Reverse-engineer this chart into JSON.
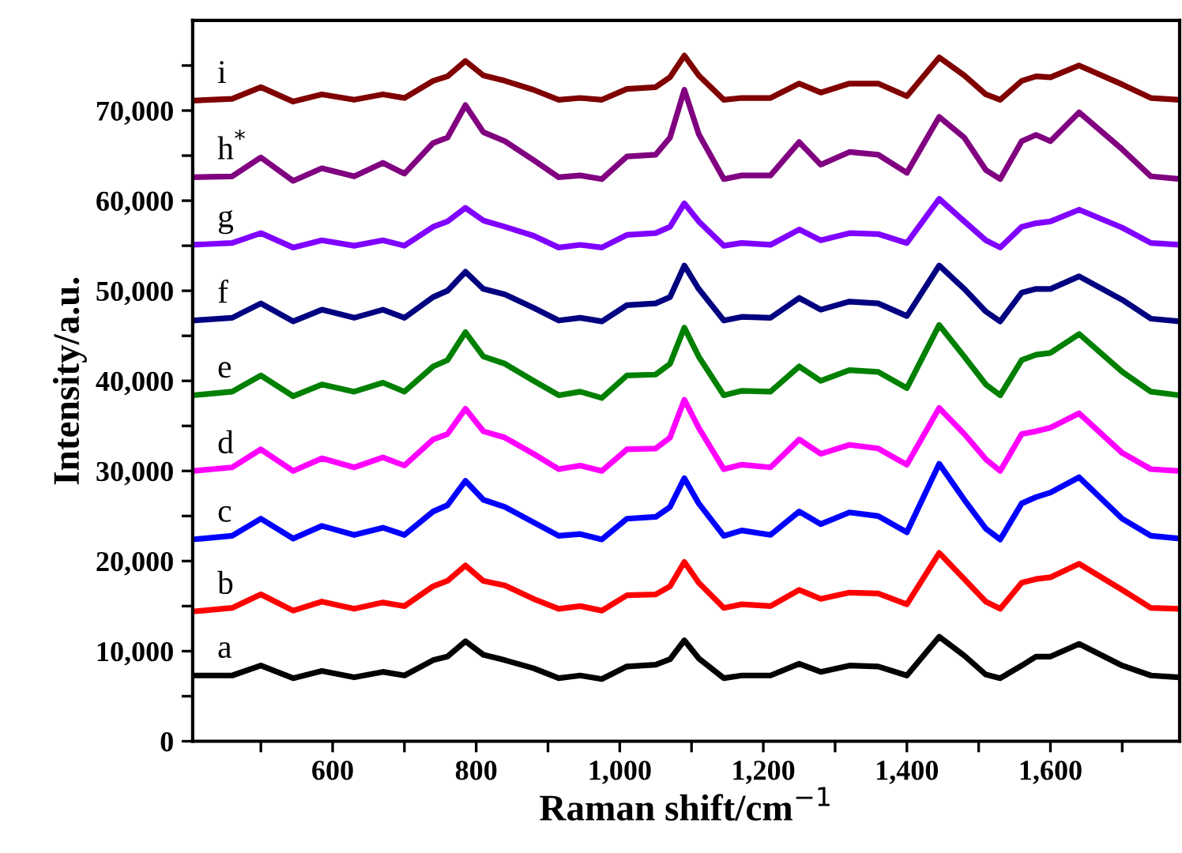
{
  "chart_data": {
    "type": "line",
    "xlabel": "Raman shift/cm$^{−1}$",
    "ylabel": "Intensity/a.u.",
    "x": [
      405,
      460,
      500,
      545,
      585,
      630,
      670,
      700,
      740,
      760,
      785,
      810,
      840,
      880,
      915,
      945,
      975,
      1010,
      1050,
      1070,
      1090,
      1110,
      1145,
      1170,
      1210,
      1250,
      1280,
      1320,
      1360,
      1400,
      1445,
      1480,
      1510,
      1530,
      1560,
      1580,
      1600,
      1640,
      1700,
      1740,
      1780
    ],
    "xlim": [
      405,
      1780
    ],
    "xticks": [
      {
        "value": 500,
        "label": null
      },
      {
        "value": 600,
        "label": "600"
      },
      {
        "value": 700,
        "label": null
      },
      {
        "value": 800,
        "label": "800"
      },
      {
        "value": 900,
        "label": null
      },
      {
        "value": 1000,
        "label": "1,000"
      },
      {
        "value": 1100,
        "label": null
      },
      {
        "value": 1200,
        "label": "1,200"
      },
      {
        "value": 1300,
        "label": null
      },
      {
        "value": 1400,
        "label": "1,400"
      },
      {
        "value": 1500,
        "label": null
      },
      {
        "value": 1600,
        "label": "1,600"
      },
      {
        "value": 1700,
        "label": null
      }
    ],
    "ylim": [
      0,
      80000
    ],
    "yticks": [
      0,
      {
        "value": 5000,
        "label": null
      },
      {
        "value": 10000,
        "label": "10,000"
      },
      {
        "value": 15000,
        "label": null
      },
      {
        "value": 20000,
        "label": "20,000"
      },
      {
        "value": 25000,
        "label": null
      },
      {
        "value": 30000,
        "label": "30,000"
      },
      {
        "value": 35000,
        "label": null
      },
      {
        "value": 40000,
        "label": "40,000"
      },
      {
        "value": 45000,
        "label": null
      },
      {
        "value": 50000,
        "label": "50,000"
      },
      {
        "value": 55000,
        "label": null
      },
      {
        "value": 60000,
        "label": "60,000"
      },
      {
        "value": 65000,
        "label": null
      },
      {
        "value": 70000,
        "label": "70,000"
      },
      {
        "value": 75000,
        "label": null
      }
    ],
    "grid": false,
    "legend": false,
    "marker": "none",
    "line_style": "solid",
    "series": [
      {
        "name": "a",
        "color": "#000000",
        "values": [
          7300,
          7300,
          8400,
          7000,
          7800,
          7100,
          7700,
          7300,
          9000,
          9400,
          11100,
          9600,
          9000,
          8100,
          7000,
          7300,
          6900,
          8300,
          8500,
          9100,
          11200,
          9200,
          7000,
          7300,
          7300,
          8600,
          7700,
          8400,
          8300,
          7300,
          11600,
          9500,
          7400,
          7000,
          8400,
          9400,
          9400,
          10800,
          8400,
          7300,
          7100
        ]
      },
      {
        "name": "b",
        "color": "#ff0000",
        "values": [
          14400,
          14800,
          16300,
          14500,
          15500,
          14700,
          15400,
          15000,
          17200,
          17800,
          19500,
          17800,
          17300,
          15800,
          14700,
          15000,
          14500,
          16200,
          16300,
          17200,
          19900,
          17600,
          14800,
          15200,
          15000,
          16800,
          15800,
          16500,
          16400,
          15200,
          20900,
          18000,
          15500,
          14700,
          17600,
          18000,
          18200,
          19700,
          16800,
          14800,
          14700
        ]
      },
      {
        "name": "c",
        "color": "#0000ff",
        "values": [
          22400,
          22800,
          24700,
          22500,
          23900,
          22900,
          23700,
          22900,
          25500,
          26200,
          28900,
          26800,
          26000,
          24300,
          22800,
          23000,
          22400,
          24700,
          24900,
          26000,
          29200,
          26400,
          22800,
          23400,
          22900,
          25500,
          24100,
          25400,
          25000,
          23200,
          30800,
          26800,
          23600,
          22400,
          26400,
          27100,
          27600,
          29300,
          24700,
          22800,
          22500
        ]
      },
      {
        "name": "d",
        "color": "#ff00ff",
        "values": [
          30000,
          30400,
          32400,
          30000,
          31400,
          30400,
          31500,
          30600,
          33500,
          34100,
          36900,
          34400,
          33700,
          31900,
          30200,
          30600,
          30000,
          32400,
          32500,
          33700,
          37900,
          34800,
          30200,
          30700,
          30400,
          33500,
          31900,
          32900,
          32500,
          30700,
          37000,
          34100,
          31300,
          30000,
          34100,
          34400,
          34800,
          36400,
          32000,
          30200,
          30000
        ]
      },
      {
        "name": "e",
        "color": "#008000",
        "values": [
          38400,
          38800,
          40600,
          38300,
          39600,
          38800,
          39800,
          38800,
          41600,
          42300,
          45400,
          42700,
          41900,
          40000,
          38400,
          38800,
          38100,
          40600,
          40700,
          41900,
          45900,
          42700,
          38400,
          38900,
          38800,
          41600,
          40000,
          41200,
          41000,
          39200,
          46200,
          42700,
          39600,
          38400,
          42300,
          42900,
          43100,
          45200,
          41000,
          38800,
          38400
        ]
      },
      {
        "name": "f",
        "color": "#000080",
        "values": [
          46700,
          47000,
          48600,
          46600,
          47900,
          47000,
          47900,
          47000,
          49300,
          50000,
          52100,
          50200,
          49600,
          48100,
          46700,
          47000,
          46600,
          48400,
          48600,
          49300,
          52800,
          50200,
          46700,
          47100,
          47000,
          49200,
          47900,
          48800,
          48600,
          47200,
          52800,
          50200,
          47700,
          46600,
          49800,
          50200,
          50200,
          51600,
          49000,
          46900,
          46600
        ]
      },
      {
        "name": "g",
        "color": "#8000ff",
        "values": [
          55100,
          55300,
          56400,
          54800,
          55600,
          55000,
          55600,
          55000,
          57100,
          57700,
          59200,
          57800,
          57100,
          56100,
          54800,
          55100,
          54800,
          56200,
          56400,
          57100,
          59700,
          57700,
          55000,
          55300,
          55100,
          56800,
          55600,
          56400,
          56300,
          55300,
          60200,
          57700,
          55600,
          54800,
          57100,
          57500,
          57700,
          59000,
          57000,
          55300,
          55100
        ]
      },
      {
        "name": "h$^{*}$",
        "color": "#800080",
        "values": [
          62600,
          62700,
          64800,
          62200,
          63600,
          62700,
          64200,
          63000,
          66400,
          67000,
          70600,
          67600,
          66600,
          64500,
          62600,
          62800,
          62400,
          64900,
          65100,
          67000,
          72300,
          67400,
          62400,
          62800,
          62800,
          66500,
          64000,
          65400,
          65100,
          63100,
          69300,
          67000,
          63400,
          62400,
          66600,
          67300,
          66600,
          69800,
          65700,
          62700,
          62400
        ]
      },
      {
        "name": "i",
        "color": "#800000",
        "values": [
          71100,
          71300,
          72600,
          71000,
          71800,
          71200,
          71800,
          71400,
          73300,
          73800,
          75500,
          73900,
          73300,
          72300,
          71200,
          71400,
          71200,
          72400,
          72600,
          73700,
          76100,
          73900,
          71200,
          71400,
          71400,
          73000,
          72000,
          73000,
          73000,
          71600,
          75900,
          73900,
          71800,
          71200,
          73300,
          73800,
          73700,
          75000,
          72900,
          71400,
          71200
        ]
      }
    ]
  }
}
